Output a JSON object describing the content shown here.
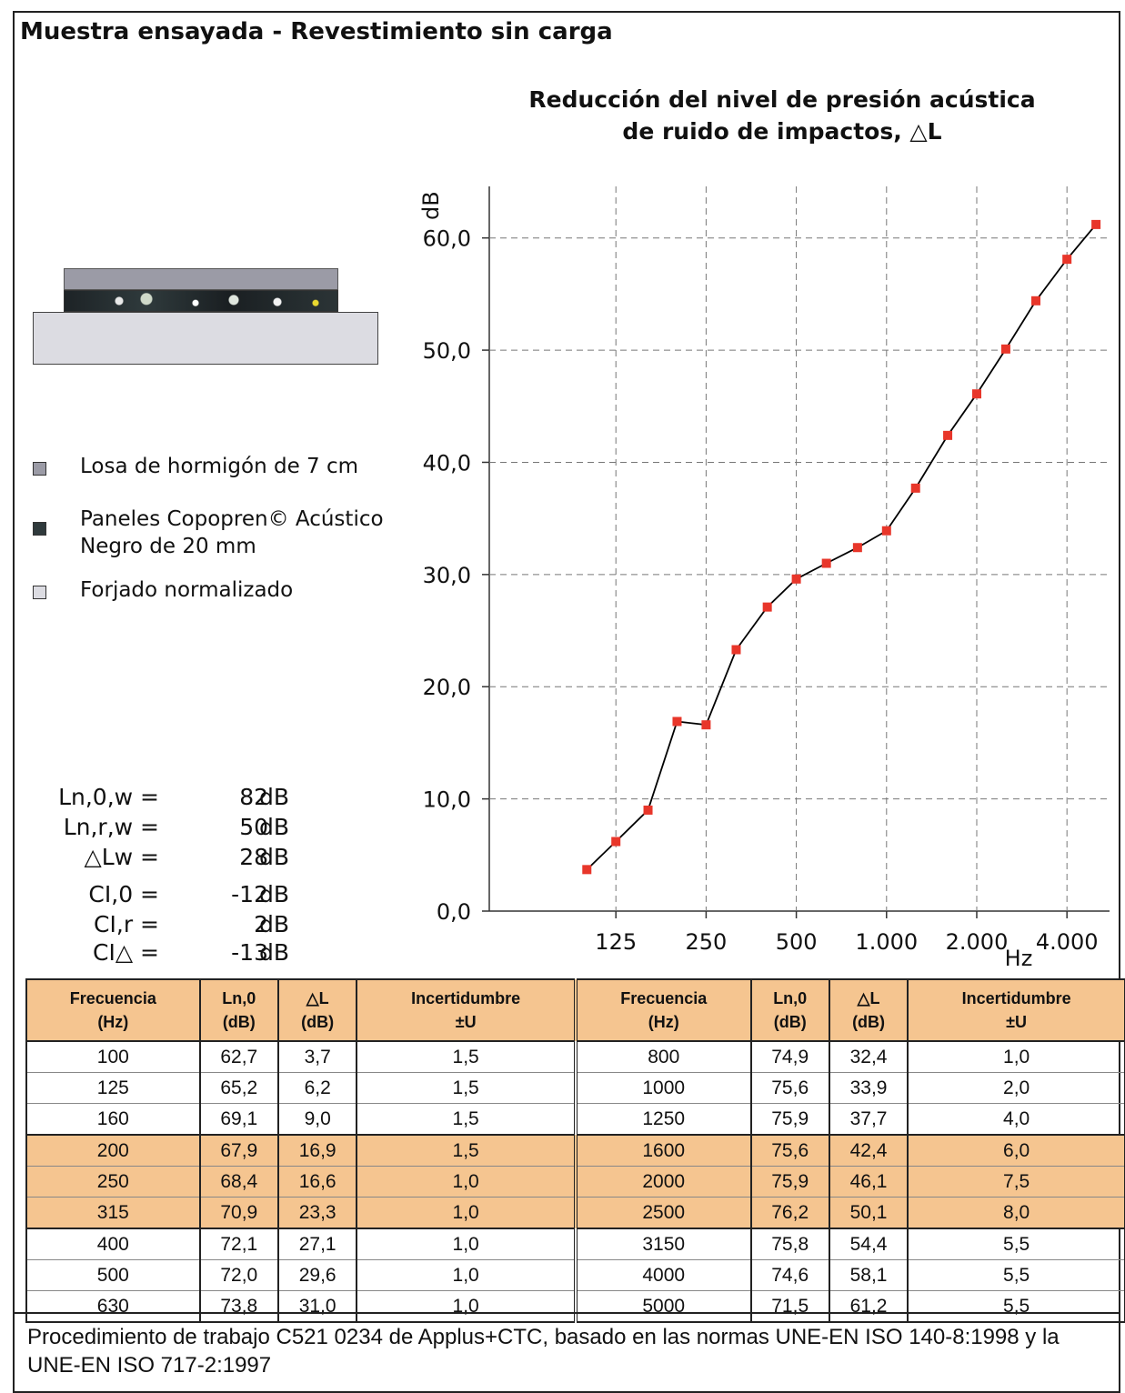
{
  "header": {
    "title": "Muestra ensayada - Revestimiento sin carga"
  },
  "legend": [
    {
      "label": "Losa de hormigón de 7 cm",
      "color": "#9b9ba6"
    },
    {
      "label": "Paneles Copopren© Acústico\nNegro de 20 mm",
      "color": "#2f3a3c"
    },
    {
      "label": "Forjado normalizado",
      "color": "#dcdce2"
    }
  ],
  "results": [
    {
      "label": "Ln,0,w =",
      "value": "82",
      "unit": "dB"
    },
    {
      "label": "Ln,r,w =",
      "value": "50",
      "unit": "dB"
    },
    {
      "label": "△Lw =",
      "value": "28",
      "unit": "dB"
    },
    {
      "label": "CI,0 =",
      "value": "-12",
      "unit": "dB"
    },
    {
      "label": "CI,r =",
      "value": "2",
      "unit": "dB"
    },
    {
      "label": "CI△ =",
      "value": "-13",
      "unit": "dB"
    }
  ],
  "chart_data": {
    "type": "line",
    "title": "Reducción del nivel de presión acústica de ruido de impactos, △L",
    "ylabel": "dB",
    "xlabel": "Hz",
    "x_scale": "log",
    "x": [
      100,
      125,
      160,
      200,
      250,
      315,
      400,
      500,
      630,
      800,
      1000,
      1250,
      1600,
      2000,
      2500,
      3150,
      4000,
      5000
    ],
    "x_tick_values": [
      125,
      250,
      500,
      1000,
      2000,
      4000
    ],
    "x_tick_labels": [
      "125",
      "250",
      "500",
      "1.000",
      "2.000",
      "4.000"
    ],
    "y_ticks": [
      "0,0",
      "10,0",
      "20,0",
      "30,0",
      "40,0",
      "50,0",
      "60,0"
    ],
    "ylim": [
      0,
      60
    ],
    "grid": true,
    "series": [
      {
        "values": [
          3.7,
          6.2,
          9.0,
          16.9,
          16.6,
          23.3,
          27.1,
          29.6,
          31.0,
          32.4,
          33.9,
          37.7,
          42.4,
          46.1,
          50.1,
          54.4,
          58.1,
          61.2
        ],
        "line_color": "#000000",
        "marker_color": "#e8362a"
      }
    ]
  },
  "table": {
    "headers": [
      "Frecuencia\n(Hz)",
      "Ln,0\n(dB)",
      "△L\n(dB)",
      "Incertidumbre\n±U",
      "Frecuencia\n(Hz)",
      "Ln,0\n(dB)",
      "△L\n(dB)",
      "Incertidumbre\n±U"
    ],
    "rows": [
      [
        "100",
        "62,7",
        "3,7",
        "1,5",
        "800",
        "74,9",
        "32,4",
        "1,0"
      ],
      [
        "125",
        "65,2",
        "6,2",
        "1,5",
        "1000",
        "75,6",
        "33,9",
        "2,0"
      ],
      [
        "160",
        "69,1",
        "9,0",
        "1,5",
        "1250",
        "75,9",
        "37,7",
        "4,0"
      ],
      [
        "200",
        "67,9",
        "16,9",
        "1,5",
        "1600",
        "75,6",
        "42,4",
        "6,0"
      ],
      [
        "250",
        "68,4",
        "16,6",
        "1,0",
        "2000",
        "75,9",
        "46,1",
        "7,5"
      ],
      [
        "315",
        "70,9",
        "23,3",
        "1,0",
        "2500",
        "76,2",
        "50,1",
        "8,0"
      ],
      [
        "400",
        "72,1",
        "27,1",
        "1,0",
        "3150",
        "75,8",
        "54,4",
        "5,5"
      ],
      [
        "500",
        "72,0",
        "29,6",
        "1,0",
        "4000",
        "74,6",
        "58,1",
        "5,5"
      ],
      [
        "630",
        "73,8",
        "31,0",
        "1,0",
        "5000",
        "71,5",
        "61,2",
        "5,5"
      ]
    ],
    "highlight_color": "#f5c590"
  },
  "footer": {
    "text": "Procedimiento de trabajo C521 0234 de Applus+CTC, basado en las normas UNE-EN ISO 140-8:1998 y la UNE-EN ISO 717-2:1997"
  }
}
